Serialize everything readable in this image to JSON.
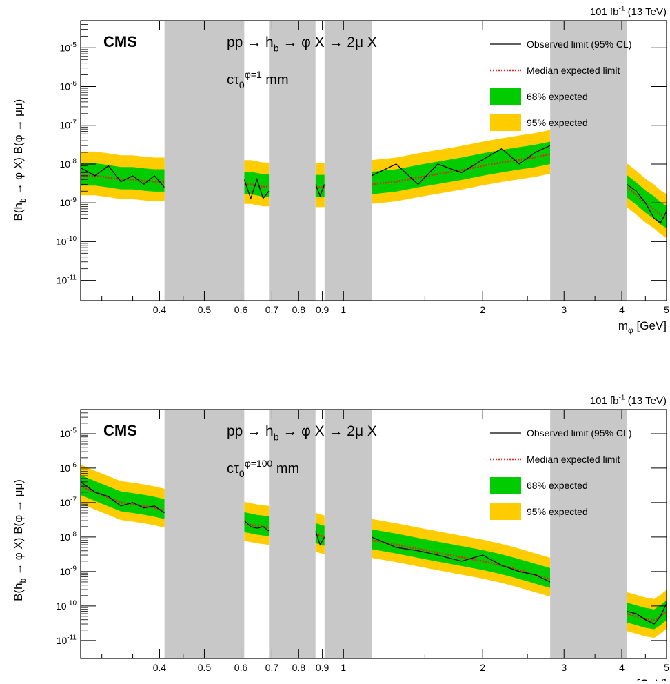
{
  "chart_data": [
    {
      "type": "line",
      "lumi_label": "101 fb^-1 (13 TeV)",
      "experiment": "CMS",
      "process": "pp → h_b → φ X → 2μ X",
      "lifetime": "cτ_0^φ=1 mm",
      "xlabel": "m_φ [GeV]",
      "ylabel": "B(h_b → φ X) B(φ → μμ)",
      "xscale": "log",
      "yscale": "log",
      "xlim": [
        0.27,
        5.0
      ],
      "ylim": [
        3e-12,
        5e-05
      ],
      "x_ticks": [
        "0.4",
        "0.5",
        "0.6",
        "0.7",
        "0.8",
        "0.9",
        "1",
        "2",
        "3",
        "4",
        "5"
      ],
      "y_ticks": [
        "10^-11",
        "10^-10",
        "10^-9",
        "10^-8",
        "10^-7",
        "10^-6",
        "10^-5"
      ],
      "legend": [
        "Observed limit (95% CL)",
        "Median expected limit",
        "68% expected",
        "95% expected"
      ],
      "legend_placement": "top-right",
      "colors": {
        "observed": "#000000",
        "expected": "#e8211f",
        "band68": "#00cc00",
        "band95": "#ffcc00",
        "excluded": "#c8c8c8"
      },
      "excluded_regions": [
        [
          0.41,
          0.61
        ],
        [
          0.69,
          0.87
        ],
        [
          0.91,
          1.15
        ],
        [
          2.8,
          4.1
        ]
      ],
      "segments": [
        {
          "x": [
            0.27,
            0.29,
            0.31,
            0.33,
            0.35,
            0.37,
            0.39,
            0.41
          ],
          "observed": [
            8e-09,
            5e-09,
            9e-09,
            3.5e-09,
            5e-09,
            3e-09,
            5e-09,
            2.5e-09
          ],
          "expected": [
            5e-09,
            5e-09,
            4.5e-09,
            4e-09,
            4e-09,
            3.7e-09,
            3.5e-09,
            3.5e-09
          ]
        },
        {
          "x": [
            0.61,
            0.63,
            0.65,
            0.67,
            0.69
          ],
          "observed": [
            4e-09,
            1.3e-09,
            4e-09,
            1.3e-09,
            2e-09
          ],
          "expected": [
            3e-09,
            3e-09,
            2.8e-09,
            2.6e-09,
            2.6e-09
          ]
        },
        {
          "x": [
            0.87,
            0.89,
            0.91
          ],
          "observed": [
            3e-09,
            1.5e-09,
            3e-09
          ],
          "expected": [
            2.5e-09,
            2.5e-09,
            2.5e-09
          ]
        },
        {
          "x": [
            1.15,
            1.3,
            1.45,
            1.6,
            1.8,
            2.0,
            2.2,
            2.4,
            2.6,
            2.8
          ],
          "observed": [
            5e-09,
            1e-08,
            3e-09,
            1e-08,
            6e-09,
            1.3e-08,
            2.5e-08,
            1e-08,
            2e-08,
            3e-08
          ],
          "expected": [
            3e-09,
            3.5e-09,
            4.5e-09,
            5.5e-09,
            7e-09,
            9e-09,
            1.1e-08,
            1.3e-08,
            1.5e-08,
            1.8e-08
          ]
        },
        {
          "x": [
            4.1,
            4.3,
            4.5,
            4.7,
            4.85,
            5.0
          ],
          "observed": [
            3e-09,
            2e-09,
            1e-09,
            4e-10,
            3e-10,
            6e-10
          ],
          "expected": [
            2.5e-09,
            1.6e-09,
            1e-09,
            7e-10,
            5e-10,
            4e-10
          ]
        }
      ]
    },
    {
      "type": "line",
      "lumi_label": "101 fb^-1 (13 TeV)",
      "experiment": "CMS",
      "process": "pp → h_b → φ X → 2μ X",
      "lifetime": "cτ_0^φ=100 mm",
      "xlabel": "m_φ [GeV]",
      "ylabel": "B(h_b → φ X) B(φ → μμ)",
      "xscale": "log",
      "yscale": "log",
      "xlim": [
        0.27,
        5.0
      ],
      "ylim": [
        3e-12,
        5e-05
      ],
      "x_ticks": [
        "0.4",
        "0.5",
        "0.6",
        "0.7",
        "0.8",
        "0.9",
        "1",
        "2",
        "3",
        "4",
        "5"
      ],
      "y_ticks": [
        "10^-11",
        "10^-10",
        "10^-9",
        "10^-8",
        "10^-7",
        "10^-6",
        "10^-5"
      ],
      "legend": [
        "Observed limit (95% CL)",
        "Median expected limit",
        "68% expected",
        "95% expected"
      ],
      "legend_placement": "top-right",
      "colors": {
        "observed": "#000000",
        "expected": "#e8211f",
        "band68": "#00cc00",
        "band95": "#ffcc00",
        "excluded": "#c8c8c8"
      },
      "excluded_regions": [
        [
          0.41,
          0.61
        ],
        [
          0.69,
          0.87
        ],
        [
          0.91,
          1.15
        ],
        [
          2.8,
          4.1
        ]
      ],
      "segments": [
        {
          "x": [
            0.27,
            0.29,
            0.31,
            0.33,
            0.35,
            0.37,
            0.39,
            0.41
          ],
          "observed": [
            4e-07,
            2e-07,
            1.5e-07,
            8e-08,
            1e-07,
            7e-08,
            8e-08,
            5e-08
          ],
          "expected": [
            3e-07,
            2e-07,
            1.4e-07,
            1e-07,
            9e-08,
            8e-08,
            7e-08,
            6e-08
          ]
        },
        {
          "x": [
            0.61,
            0.63,
            0.65,
            0.67,
            0.69
          ],
          "observed": [
            3e-08,
            2e-08,
            1.8e-08,
            2e-08,
            1.5e-08
          ],
          "expected": [
            2.5e-08,
            2.3e-08,
            2.1e-08,
            2e-08,
            1.9e-08
          ]
        },
        {
          "x": [
            0.87,
            0.89,
            0.91
          ],
          "observed": [
            1.5e-08,
            6e-09,
            1e-08
          ],
          "expected": [
            1.2e-08,
            1.1e-08,
            1e-08
          ]
        },
        {
          "x": [
            1.15,
            1.3,
            1.45,
            1.6,
            1.8,
            2.0,
            2.2,
            2.4,
            2.6,
            2.8
          ],
          "observed": [
            1e-08,
            5e-09,
            4e-09,
            3e-09,
            2e-09,
            3e-09,
            1.5e-09,
            1e-09,
            8e-10,
            5e-10
          ],
          "expected": [
            8e-09,
            6e-09,
            4.5e-09,
            3.5e-09,
            2.6e-09,
            2e-09,
            1.5e-09,
            1.1e-09,
            8e-10,
            6e-10
          ]
        },
        {
          "x": [
            4.1,
            4.3,
            4.5,
            4.7,
            4.85,
            5.0
          ],
          "observed": [
            7e-11,
            6e-11,
            4e-11,
            3e-11,
            5e-11,
            1.2e-10
          ],
          "expected": [
            6e-11,
            5e-11,
            4.2e-11,
            3.8e-11,
            5e-11,
            7e-11
          ]
        }
      ]
    }
  ]
}
